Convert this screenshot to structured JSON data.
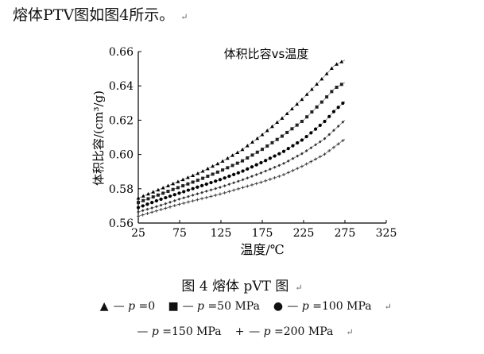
{
  "intro_text": "熔体PTV图如图4所示。",
  "para_mark": "↵",
  "caption": "图 4   熔体 pVT 图",
  "chart_data": {
    "type": "scatter",
    "title": "体积比容vs温度",
    "xlabel": "温度/℃",
    "ylabel": "体积比容/(cm³/g)",
    "xlim": [
      25,
      325
    ],
    "ylim": [
      0.56,
      0.66
    ],
    "xticks": [
      "25",
      "75",
      "125",
      "175",
      "225",
      "275",
      "325"
    ],
    "yticks": [
      "0.56",
      "0.58",
      "0.60",
      "0.62",
      "0.64",
      "0.66"
    ],
    "grid": false,
    "legend_position": "bottom",
    "x": [
      25,
      50,
      75,
      100,
      125,
      150,
      175,
      200,
      225,
      250,
      262.5,
      275
    ],
    "series": [
      {
        "name": "— p =0",
        "marker": "triangle",
        "values": [
          0.5745,
          0.5795,
          0.5845,
          0.5895,
          0.5955,
          0.6025,
          0.6115,
          0.6215,
          0.633,
          0.6455,
          0.652,
          0.655
        ]
      },
      {
        "name": "— p =50 MPa",
        "marker": "square",
        "values": [
          0.572,
          0.5765,
          0.581,
          0.5855,
          0.5905,
          0.596,
          0.603,
          0.611,
          0.62,
          0.632,
          0.6385,
          0.642
        ]
      },
      {
        "name": "— p =100 MPa",
        "marker": "circle",
        "values": [
          0.569,
          0.5735,
          0.5775,
          0.5815,
          0.5855,
          0.59,
          0.5955,
          0.6015,
          0.609,
          0.619,
          0.6255,
          0.631
        ]
      },
      {
        "name": "— p =150 MPa",
        "marker": "diamond",
        "values": [
          0.5665,
          0.57,
          0.574,
          0.5775,
          0.581,
          0.585,
          0.5895,
          0.5945,
          0.601,
          0.609,
          0.6145,
          0.62
        ]
      },
      {
        "name": "— p =200 MPa",
        "marker": "plus",
        "values": [
          0.564,
          0.5675,
          0.571,
          0.574,
          0.577,
          0.5805,
          0.584,
          0.588,
          0.5935,
          0.6,
          0.6045,
          0.609
        ]
      }
    ],
    "legend": [
      {
        "symbol": "▲",
        "dash": "—",
        "pvar": "p",
        "text": "=0"
      },
      {
        "symbol": "■",
        "dash": "—",
        "pvar": "p",
        "text": "=50 MPa"
      },
      {
        "symbol": "●",
        "dash": "—",
        "pvar": "p",
        "text": "=100 MPa"
      },
      {
        "symbol": "",
        "dash": "—",
        "pvar": "p",
        "text": "=150 MPa"
      },
      {
        "symbol": "+",
        "dash": "—",
        "pvar": "p",
        "text": "=200 MPa"
      }
    ]
  }
}
